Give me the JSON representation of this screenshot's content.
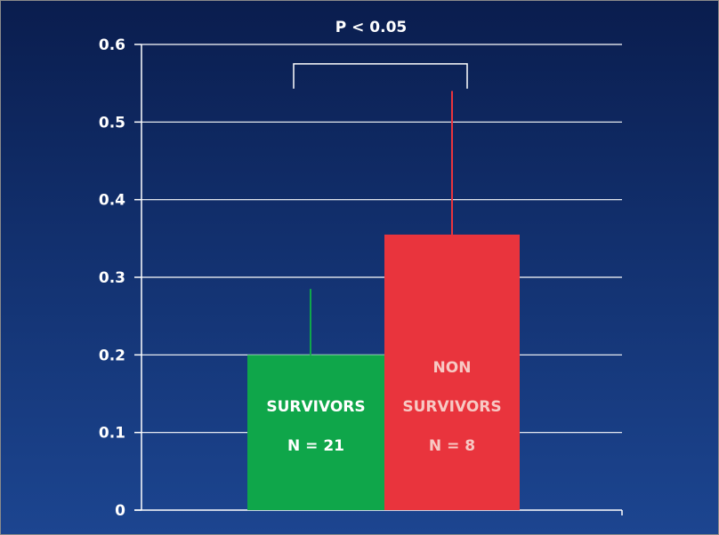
{
  "chart_data": {
    "type": "bar",
    "categories": [
      {
        "line1": "",
        "line2": "SURVIVORS",
        "n": "N = 21"
      },
      {
        "line1": "NON",
        "line2": "SURVIVORS",
        "n": "N = 8"
      }
    ],
    "values": [
      0.2,
      0.355
    ],
    "error_upper": [
      0.285,
      0.54
    ],
    "bar_colors": [
      "#0fa64a",
      "#e9343d"
    ],
    "label_colors": [
      "#ffffff",
      "#f7c9c4"
    ],
    "errorbar_colors": [
      "#0fa64a",
      "#e9343d"
    ],
    "ylim": [
      0,
      0.6
    ],
    "yticks": [
      "0",
      "0.1",
      "0.2",
      "0.3",
      "0.4",
      "0.5",
      "0.6"
    ],
    "ytick_values": [
      0,
      0.1,
      0.2,
      0.3,
      0.4,
      0.5,
      0.6
    ],
    "grid": true,
    "significance": {
      "label": "P < 0.05",
      "bracket_y": 0.575,
      "bracket_drop": 0.032
    },
    "title": "",
    "xlabel": "",
    "ylabel": ""
  },
  "colors": {
    "background": "#12306e",
    "grid": "#ffffff",
    "text": "#ffffff"
  }
}
